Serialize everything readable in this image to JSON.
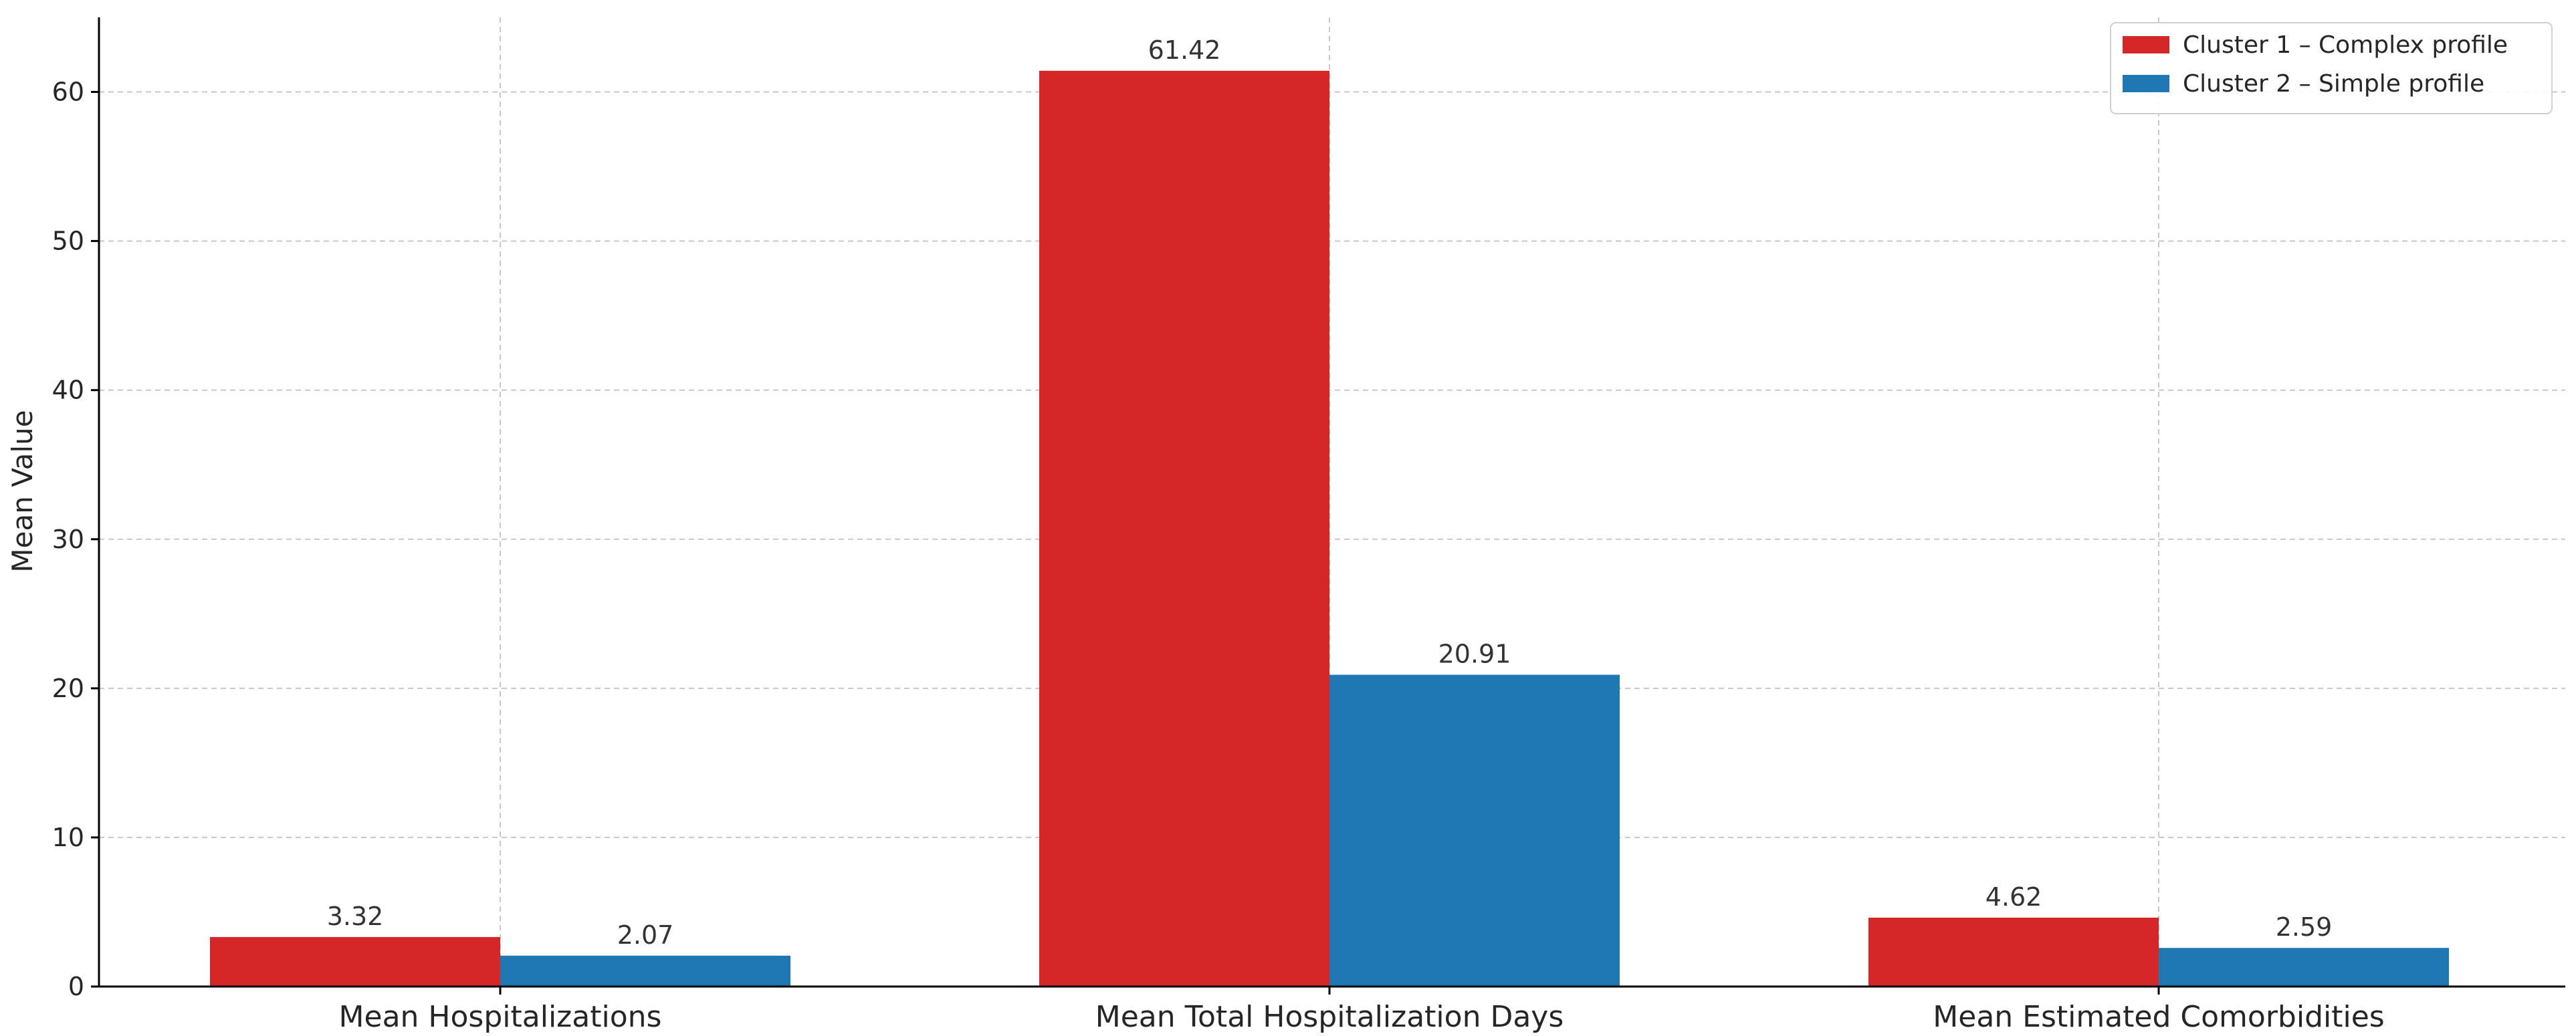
{
  "chart_data": {
    "type": "bar",
    "title": "",
    "xlabel": "",
    "ylabel": "Mean Value",
    "ylim": [
      0,
      65
    ],
    "yticks": [
      0,
      10,
      20,
      30,
      40,
      50,
      60
    ],
    "grid": true,
    "legend_position": "top-right",
    "categories": [
      "Mean Hospitalizations",
      "Mean Total Hospitalization Days",
      "Mean Estimated Comorbidities"
    ],
    "series": [
      {
        "name": "Cluster 1 – Complex profile",
        "color": "#d62728",
        "values": [
          3.32,
          61.42,
          4.62
        ],
        "labels": [
          "3.32",
          "61.42",
          "4.62"
        ]
      },
      {
        "name": "Cluster 2 – Simple profile",
        "color": "#1f77b4",
        "values": [
          2.07,
          20.91,
          2.59
        ],
        "labels": [
          "2.07",
          "20.91",
          "2.59"
        ]
      }
    ]
  }
}
